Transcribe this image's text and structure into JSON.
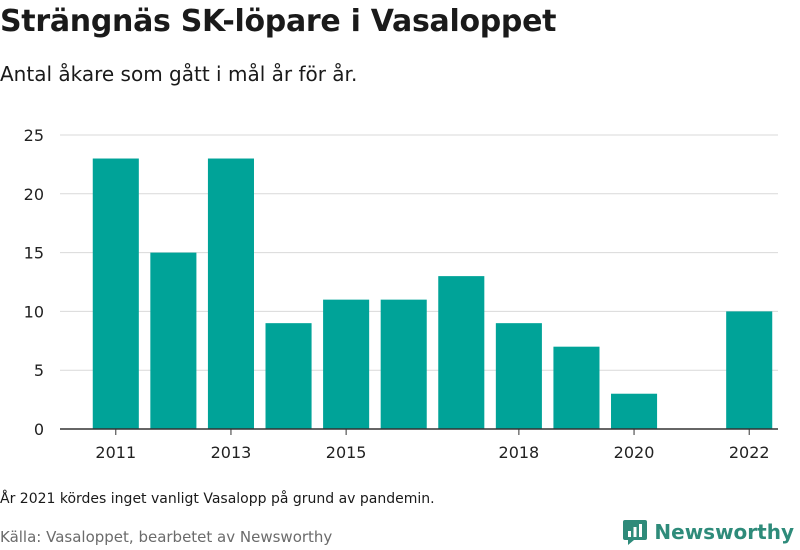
{
  "header": {
    "title": "Strängnäs SK-löpare i Vasaloppet",
    "subtitle": "Antal åkare som gått i mål år för år."
  },
  "footer": {
    "note": "År 2021 kördes inget vanligt Vasalopp på grund av pandemin.",
    "source": "Källa: Vasaloppet, bearbetet av Newsworthy",
    "brand": "Newsworthy",
    "brand_icon": "newsworthy-logo-icon"
  },
  "colors": {
    "bar": "#00a398",
    "grid": "#d9d9d9",
    "axis": "#333333",
    "brand": "#2e8b7a"
  },
  "chart_data": {
    "type": "bar",
    "title": "Strängnäs SK-löpare i Vasaloppet",
    "subtitle": "Antal åkare som gått i mål år för år.",
    "categories": [
      2011,
      2012,
      2013,
      2014,
      2015,
      2016,
      2017,
      2018,
      2019,
      2020,
      2021,
      2022
    ],
    "values": [
      23,
      15,
      23,
      9,
      11,
      11,
      13,
      9,
      7,
      3,
      null,
      10
    ],
    "x_tick_labels": [
      "2011",
      "2013",
      "2015",
      "2018",
      "2020",
      "2022"
    ],
    "y_ticks": [
      0,
      5,
      10,
      15,
      20,
      25
    ],
    "ylim": [
      0,
      25
    ],
    "xlabel": "",
    "ylabel": "",
    "grid": true,
    "legend": "none"
  }
}
